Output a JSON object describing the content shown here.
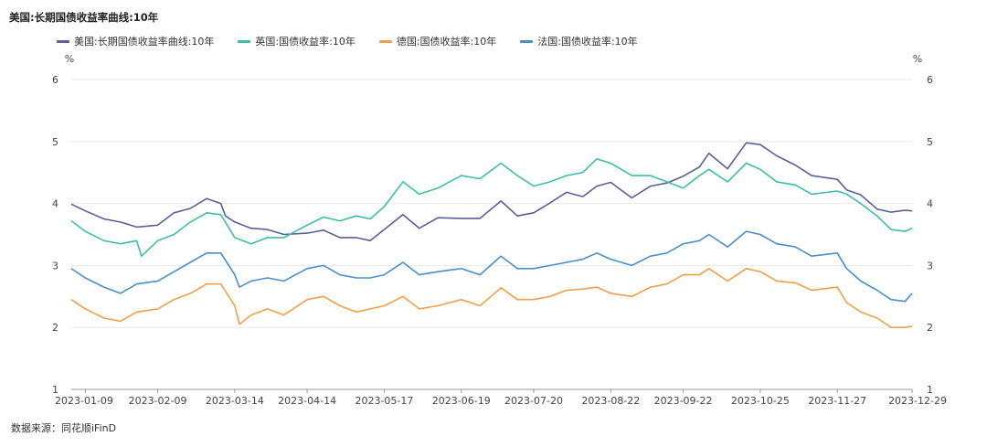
{
  "title": "美国:长期国债收益率曲线:10年",
  "source": "数据来源：同花顺iFinD",
  "chart_data": {
    "type": "line",
    "y_unit": "%",
    "ylim": [
      1,
      6
    ],
    "yticks": [
      "1",
      "2",
      "3",
      "4",
      "5",
      "6"
    ],
    "x_start": "2023-01-03",
    "x_end": "2023-12-29",
    "xticks": [
      "2023-01-09",
      "2023-02-09",
      "2023-03-14",
      "2023-04-14",
      "2023-05-17",
      "2023-06-19",
      "2023-07-20",
      "2023-08-22",
      "2023-09-22",
      "2023-10-25",
      "2023-11-27",
      "2023-12-29"
    ],
    "grid": "horizontal",
    "legend_position": "top",
    "series": [
      {
        "name": "美国:长期国债收益率曲线:10年",
        "color": "#5b5f97",
        "points": [
          [
            "2023-01-03",
            3.99
          ],
          [
            "2023-01-09",
            3.88
          ],
          [
            "2023-01-17",
            3.75
          ],
          [
            "2023-01-24",
            3.7
          ],
          [
            "2023-01-31",
            3.62
          ],
          [
            "2023-02-09",
            3.65
          ],
          [
            "2023-02-16",
            3.85
          ],
          [
            "2023-02-23",
            3.92
          ],
          [
            "2023-03-02",
            4.08
          ],
          [
            "2023-03-08",
            4.0
          ],
          [
            "2023-03-10",
            3.8
          ],
          [
            "2023-03-14",
            3.7
          ],
          [
            "2023-03-21",
            3.6
          ],
          [
            "2023-03-28",
            3.58
          ],
          [
            "2023-04-04",
            3.5
          ],
          [
            "2023-04-14",
            3.52
          ],
          [
            "2023-04-21",
            3.57
          ],
          [
            "2023-04-28",
            3.45
          ],
          [
            "2023-05-05",
            3.45
          ],
          [
            "2023-05-11",
            3.4
          ],
          [
            "2023-05-17",
            3.58
          ],
          [
            "2023-05-25",
            3.82
          ],
          [
            "2023-06-01",
            3.6
          ],
          [
            "2023-06-09",
            3.77
          ],
          [
            "2023-06-19",
            3.76
          ],
          [
            "2023-06-27",
            3.76
          ],
          [
            "2023-07-06",
            4.04
          ],
          [
            "2023-07-13",
            3.8
          ],
          [
            "2023-07-20",
            3.85
          ],
          [
            "2023-07-27",
            4.01
          ],
          [
            "2023-08-03",
            4.18
          ],
          [
            "2023-08-10",
            4.11
          ],
          [
            "2023-08-16",
            4.28
          ],
          [
            "2023-08-22",
            4.34
          ],
          [
            "2023-08-31",
            4.09
          ],
          [
            "2023-09-08",
            4.28
          ],
          [
            "2023-09-15",
            4.33
          ],
          [
            "2023-09-22",
            4.44
          ],
          [
            "2023-09-29",
            4.59
          ],
          [
            "2023-10-03",
            4.81
          ],
          [
            "2023-10-11",
            4.56
          ],
          [
            "2023-10-19",
            4.98
          ],
          [
            "2023-10-25",
            4.95
          ],
          [
            "2023-11-01",
            4.77
          ],
          [
            "2023-11-09",
            4.62
          ],
          [
            "2023-11-16",
            4.45
          ],
          [
            "2023-11-27",
            4.39
          ],
          [
            "2023-12-01",
            4.22
          ],
          [
            "2023-12-07",
            4.14
          ],
          [
            "2023-12-14",
            3.91
          ],
          [
            "2023-12-20",
            3.86
          ],
          [
            "2023-12-26",
            3.89
          ],
          [
            "2023-12-29",
            3.88
          ]
        ]
      },
      {
        "name": "英国:国债收益率:10年",
        "color": "#3fbfa2",
        "points": [
          [
            "2023-01-03",
            3.72
          ],
          [
            "2023-01-09",
            3.55
          ],
          [
            "2023-01-17",
            3.4
          ],
          [
            "2023-01-24",
            3.35
          ],
          [
            "2023-01-31",
            3.4
          ],
          [
            "2023-02-02",
            3.15
          ],
          [
            "2023-02-09",
            3.4
          ],
          [
            "2023-02-16",
            3.5
          ],
          [
            "2023-02-23",
            3.7
          ],
          [
            "2023-03-02",
            3.85
          ],
          [
            "2023-03-08",
            3.82
          ],
          [
            "2023-03-14",
            3.45
          ],
          [
            "2023-03-21",
            3.35
          ],
          [
            "2023-03-28",
            3.45
          ],
          [
            "2023-04-04",
            3.45
          ],
          [
            "2023-04-14",
            3.65
          ],
          [
            "2023-04-21",
            3.78
          ],
          [
            "2023-04-28",
            3.72
          ],
          [
            "2023-05-05",
            3.8
          ],
          [
            "2023-05-11",
            3.75
          ],
          [
            "2023-05-17",
            3.95
          ],
          [
            "2023-05-25",
            4.35
          ],
          [
            "2023-06-01",
            4.15
          ],
          [
            "2023-06-09",
            4.25
          ],
          [
            "2023-06-19",
            4.45
          ],
          [
            "2023-06-27",
            4.4
          ],
          [
            "2023-07-06",
            4.65
          ],
          [
            "2023-07-13",
            4.45
          ],
          [
            "2023-07-20",
            4.28
          ],
          [
            "2023-07-27",
            4.35
          ],
          [
            "2023-08-03",
            4.45
          ],
          [
            "2023-08-10",
            4.5
          ],
          [
            "2023-08-16",
            4.72
          ],
          [
            "2023-08-22",
            4.65
          ],
          [
            "2023-08-31",
            4.45
          ],
          [
            "2023-09-08",
            4.45
          ],
          [
            "2023-09-15",
            4.35
          ],
          [
            "2023-09-22",
            4.25
          ],
          [
            "2023-09-29",
            4.45
          ],
          [
            "2023-10-03",
            4.55
          ],
          [
            "2023-10-11",
            4.35
          ],
          [
            "2023-10-19",
            4.65
          ],
          [
            "2023-10-25",
            4.55
          ],
          [
            "2023-11-01",
            4.35
          ],
          [
            "2023-11-09",
            4.3
          ],
          [
            "2023-11-16",
            4.15
          ],
          [
            "2023-11-27",
            4.2
          ],
          [
            "2023-12-01",
            4.15
          ],
          [
            "2023-12-07",
            4.0
          ],
          [
            "2023-12-14",
            3.8
          ],
          [
            "2023-12-20",
            3.58
          ],
          [
            "2023-12-26",
            3.55
          ],
          [
            "2023-12-29",
            3.6
          ]
        ]
      },
      {
        "name": "德国:国债收益率:10年",
        "color": "#f0a04b",
        "points": [
          [
            "2023-01-03",
            2.45
          ],
          [
            "2023-01-09",
            2.3
          ],
          [
            "2023-01-17",
            2.15
          ],
          [
            "2023-01-24",
            2.1
          ],
          [
            "2023-01-31",
            2.25
          ],
          [
            "2023-02-09",
            2.3
          ],
          [
            "2023-02-16",
            2.45
          ],
          [
            "2023-02-23",
            2.55
          ],
          [
            "2023-03-02",
            2.7
          ],
          [
            "2023-03-08",
            2.7
          ],
          [
            "2023-03-14",
            2.35
          ],
          [
            "2023-03-16",
            2.05
          ],
          [
            "2023-03-21",
            2.2
          ],
          [
            "2023-03-28",
            2.3
          ],
          [
            "2023-04-04",
            2.2
          ],
          [
            "2023-04-14",
            2.45
          ],
          [
            "2023-04-21",
            2.5
          ],
          [
            "2023-04-28",
            2.35
          ],
          [
            "2023-05-05",
            2.25
          ],
          [
            "2023-05-11",
            2.3
          ],
          [
            "2023-05-17",
            2.35
          ],
          [
            "2023-05-25",
            2.5
          ],
          [
            "2023-06-01",
            2.3
          ],
          [
            "2023-06-09",
            2.35
          ],
          [
            "2023-06-19",
            2.45
          ],
          [
            "2023-06-27",
            2.35
          ],
          [
            "2023-07-06",
            2.64
          ],
          [
            "2023-07-13",
            2.45
          ],
          [
            "2023-07-20",
            2.45
          ],
          [
            "2023-07-27",
            2.5
          ],
          [
            "2023-08-03",
            2.6
          ],
          [
            "2023-08-10",
            2.62
          ],
          [
            "2023-08-16",
            2.65
          ],
          [
            "2023-08-22",
            2.55
          ],
          [
            "2023-08-31",
            2.5
          ],
          [
            "2023-09-08",
            2.65
          ],
          [
            "2023-09-15",
            2.7
          ],
          [
            "2023-09-22",
            2.85
          ],
          [
            "2023-09-29",
            2.85
          ],
          [
            "2023-10-03",
            2.95
          ],
          [
            "2023-10-11",
            2.75
          ],
          [
            "2023-10-19",
            2.95
          ],
          [
            "2023-10-25",
            2.9
          ],
          [
            "2023-11-01",
            2.75
          ],
          [
            "2023-11-09",
            2.72
          ],
          [
            "2023-11-16",
            2.6
          ],
          [
            "2023-11-27",
            2.65
          ],
          [
            "2023-12-01",
            2.4
          ],
          [
            "2023-12-07",
            2.25
          ],
          [
            "2023-12-14",
            2.15
          ],
          [
            "2023-12-20",
            2.0
          ],
          [
            "2023-12-26",
            2.0
          ],
          [
            "2023-12-29",
            2.02
          ]
        ]
      },
      {
        "name": "法国:国债收益率:10年",
        "color": "#4a8fc9",
        "points": [
          [
            "2023-01-03",
            2.95
          ],
          [
            "2023-01-09",
            2.8
          ],
          [
            "2023-01-17",
            2.65
          ],
          [
            "2023-01-24",
            2.55
          ],
          [
            "2023-01-31",
            2.7
          ],
          [
            "2023-02-09",
            2.75
          ],
          [
            "2023-02-16",
            2.9
          ],
          [
            "2023-02-23",
            3.05
          ],
          [
            "2023-03-02",
            3.2
          ],
          [
            "2023-03-08",
            3.2
          ],
          [
            "2023-03-14",
            2.85
          ],
          [
            "2023-03-16",
            2.65
          ],
          [
            "2023-03-21",
            2.75
          ],
          [
            "2023-03-28",
            2.8
          ],
          [
            "2023-04-04",
            2.75
          ],
          [
            "2023-04-14",
            2.95
          ],
          [
            "2023-04-21",
            3.0
          ],
          [
            "2023-04-28",
            2.85
          ],
          [
            "2023-05-05",
            2.8
          ],
          [
            "2023-05-11",
            2.8
          ],
          [
            "2023-05-17",
            2.85
          ],
          [
            "2023-05-25",
            3.05
          ],
          [
            "2023-06-01",
            2.85
          ],
          [
            "2023-06-09",
            2.9
          ],
          [
            "2023-06-19",
            2.95
          ],
          [
            "2023-06-27",
            2.85
          ],
          [
            "2023-07-06",
            3.15
          ],
          [
            "2023-07-13",
            2.95
          ],
          [
            "2023-07-20",
            2.95
          ],
          [
            "2023-07-27",
            3.0
          ],
          [
            "2023-08-03",
            3.05
          ],
          [
            "2023-08-10",
            3.1
          ],
          [
            "2023-08-16",
            3.2
          ],
          [
            "2023-08-22",
            3.1
          ],
          [
            "2023-08-31",
            3.0
          ],
          [
            "2023-09-08",
            3.15
          ],
          [
            "2023-09-15",
            3.2
          ],
          [
            "2023-09-22",
            3.35
          ],
          [
            "2023-09-29",
            3.4
          ],
          [
            "2023-10-03",
            3.5
          ],
          [
            "2023-10-11",
            3.3
          ],
          [
            "2023-10-19",
            3.55
          ],
          [
            "2023-10-25",
            3.5
          ],
          [
            "2023-11-01",
            3.35
          ],
          [
            "2023-11-09",
            3.3
          ],
          [
            "2023-11-16",
            3.15
          ],
          [
            "2023-11-27",
            3.2
          ],
          [
            "2023-12-01",
            2.95
          ],
          [
            "2023-12-07",
            2.75
          ],
          [
            "2023-12-14",
            2.6
          ],
          [
            "2023-12-20",
            2.45
          ],
          [
            "2023-12-26",
            2.42
          ],
          [
            "2023-12-29",
            2.55
          ]
        ]
      }
    ]
  }
}
